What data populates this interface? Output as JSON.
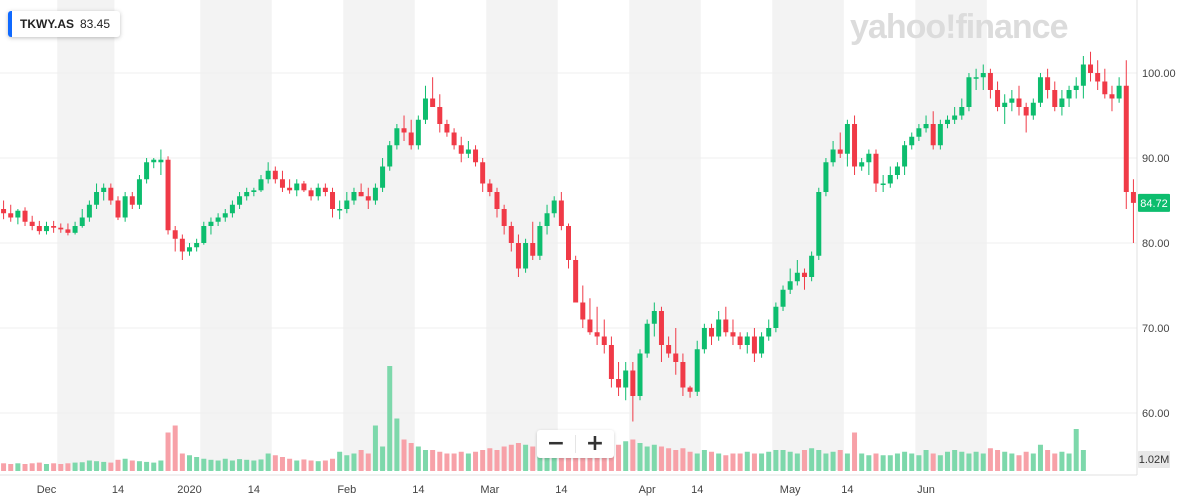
{
  "ticker": {
    "symbol": "TKWY.AS",
    "price": "83.45",
    "accent": "#0f69ff"
  },
  "logo": "yahoo!finance",
  "zoom": {
    "out_label": "−",
    "in_label": "+"
  },
  "colors": {
    "up": "#0dbd6e",
    "down": "#f03a47",
    "grid": "#efefef",
    "band": "#f3f3f3",
    "volume_up": "#7dd8ab",
    "volume_down": "#f7a1a8"
  },
  "chart_data": {
    "type": "candlestick",
    "ylim": [
      57,
      106
    ],
    "y_ticks": [
      "60.00",
      "70.00",
      "80.00",
      "90.00",
      "100.00"
    ],
    "x_ticks": [
      {
        "label": "Dec",
        "i": 6
      },
      {
        "label": "14",
        "i": 16
      },
      {
        "label": "2020",
        "i": 26
      },
      {
        "label": "14",
        "i": 35
      },
      {
        "label": "Feb",
        "i": 48
      },
      {
        "label": "14",
        "i": 58
      },
      {
        "label": "Mar",
        "i": 68
      },
      {
        "label": "14",
        "i": 78
      },
      {
        "label": "Apr",
        "i": 90
      },
      {
        "label": "14",
        "i": 97
      },
      {
        "label": "May",
        "i": 110
      },
      {
        "label": "14",
        "i": 118
      },
      {
        "label": "Jun",
        "i": 129
      }
    ],
    "bands": [
      [
        8,
        16
      ],
      [
        28,
        38
      ],
      [
        48,
        58
      ],
      [
        68,
        78
      ],
      [
        88,
        98
      ],
      [
        108,
        118
      ],
      [
        128,
        138
      ]
    ],
    "last_price": "84.72",
    "volume_label": "1.02M",
    "ohlc": [
      [
        84,
        85,
        82.8,
        83.5
      ],
      [
        83.5,
        84.5,
        82.5,
        83
      ],
      [
        83,
        84,
        82.2,
        83.8
      ],
      [
        83.8,
        84.2,
        82,
        82.5
      ],
      [
        82.5,
        83.2,
        81.5,
        82
      ],
      [
        82,
        82.6,
        81,
        81.4
      ],
      [
        81.4,
        82.5,
        81,
        82
      ],
      [
        82,
        82.6,
        81.2,
        81.8
      ],
      [
        81.8,
        82.3,
        81.2,
        81.6
      ],
      [
        81.6,
        82.3,
        80.9,
        81.2
      ],
      [
        81.2,
        82.5,
        81,
        82
      ],
      [
        82,
        84,
        81.8,
        83
      ],
      [
        83,
        85,
        82.5,
        84.5
      ],
      [
        84.5,
        87,
        84,
        86
      ],
      [
        86,
        87,
        85,
        86.5
      ],
      [
        86.5,
        87,
        84.5,
        85
      ],
      [
        85,
        85.5,
        82.7,
        83
      ],
      [
        83,
        86,
        82.5,
        85.5
      ],
      [
        85.5,
        86,
        84,
        84.5
      ],
      [
        84.5,
        88,
        84,
        87.5
      ],
      [
        87.5,
        90,
        87,
        89.5
      ],
      [
        89.5,
        90,
        88.8,
        89.8
      ],
      [
        89.5,
        91,
        88,
        89.8
      ],
      [
        89.8,
        90.2,
        81,
        81.5
      ],
      [
        81.5,
        82,
        79,
        80.5
      ],
      [
        80.5,
        81,
        78,
        79
      ],
      [
        79,
        80,
        78.5,
        79.5
      ],
      [
        79.5,
        80.5,
        79,
        80
      ],
      [
        80,
        82.5,
        79.8,
        82
      ],
      [
        82,
        83,
        81,
        82.5
      ],
      [
        82.5,
        83.5,
        82,
        83
      ],
      [
        83,
        84,
        82.5,
        83.5
      ],
      [
        83.5,
        85,
        83,
        84.5
      ],
      [
        84.5,
        86,
        84,
        85.5
      ],
      [
        85.5,
        86.5,
        85,
        86
      ],
      [
        86,
        86.5,
        85.5,
        86.2
      ],
      [
        86.2,
        88,
        86,
        87.5
      ],
      [
        87.5,
        89.5,
        87,
        88.5
      ],
      [
        88.5,
        89,
        87,
        87.5
      ],
      [
        87.5,
        88.5,
        86,
        86.5
      ],
      [
        86.5,
        87.5,
        85.8,
        86.2
      ],
      [
        86.2,
        87.5,
        85.5,
        87
      ],
      [
        87,
        87.3,
        86,
        86.2
      ],
      [
        86.2,
        86.5,
        85,
        85.5
      ],
      [
        85.5,
        87,
        85,
        86.5
      ],
      [
        86.5,
        87,
        85.5,
        86
      ],
      [
        86,
        86.5,
        83,
        84
      ],
      [
        84,
        85,
        82.8,
        84
      ],
      [
        84,
        86,
        83.5,
        85
      ],
      [
        85,
        86.5,
        84.5,
        86
      ],
      [
        86,
        87,
        85.5,
        85.5
      ],
      [
        85.5,
        86.5,
        84,
        85
      ],
      [
        85,
        87,
        84.5,
        86.5
      ],
      [
        86.5,
        90,
        86,
        89
      ],
      [
        89,
        92,
        88.5,
        91.5
      ],
      [
        91.5,
        94,
        91,
        93.5
      ],
      [
        93.5,
        95,
        92,
        93
      ],
      [
        93,
        94.5,
        91,
        91.5
      ],
      [
        91.5,
        95,
        91,
        94.5
      ],
      [
        94.5,
        98.5,
        94,
        97
      ],
      [
        97,
        99.5,
        96,
        96
      ],
      [
        96,
        97.5,
        93,
        94
      ],
      [
        94,
        94.5,
        92.5,
        93
      ],
      [
        93,
        93.5,
        91,
        91.5
      ],
      [
        91.5,
        92.5,
        89.5,
        90.5
      ],
      [
        90.5,
        92,
        90,
        91
      ],
      [
        91,
        91.5,
        89,
        89.5
      ],
      [
        89.5,
        90,
        86,
        87
      ],
      [
        87,
        87.5,
        85.5,
        86
      ],
      [
        86,
        86.5,
        83,
        84
      ],
      [
        84,
        84.5,
        81,
        82
      ],
      [
        82,
        82.5,
        79,
        80
      ],
      [
        80,
        81,
        76,
        77
      ],
      [
        77,
        80.5,
        76.5,
        80
      ],
      [
        80,
        82.5,
        78,
        78.5
      ],
      [
        78.5,
        82.5,
        78,
        82
      ],
      [
        82,
        84.5,
        81,
        83.5
      ],
      [
        83.5,
        85.5,
        83,
        85
      ],
      [
        85,
        86,
        81.5,
        82
      ],
      [
        82,
        82.3,
        77,
        78
      ],
      [
        78,
        78.5,
        73,
        73
      ],
      [
        73,
        75,
        70,
        71
      ],
      [
        71,
        73.5,
        69.2,
        69.5
      ],
      [
        69.5,
        72.5,
        68,
        69
      ],
      [
        69,
        71,
        67,
        68
      ],
      [
        68,
        69,
        63,
        64
      ],
      [
        64,
        66,
        62,
        63
      ],
      [
        63,
        66,
        61.5,
        65
      ],
      [
        65,
        66,
        59,
        62
      ],
      [
        62,
        67.5,
        61.5,
        67
      ],
      [
        67,
        71,
        66.5,
        70.5
      ],
      [
        70.5,
        73,
        69,
        72
      ],
      [
        72,
        72.5,
        66,
        68
      ],
      [
        68,
        69,
        66.5,
        67
      ],
      [
        67,
        70,
        64.5,
        66
      ],
      [
        66,
        67,
        62,
        63
      ],
      [
        63,
        63.2,
        61.8,
        62.5
      ],
      [
        62.5,
        68.5,
        62,
        67.5
      ],
      [
        67.5,
        70.5,
        67,
        70
      ],
      [
        70,
        70.5,
        68,
        69
      ],
      [
        69,
        72,
        68.5,
        71
      ],
      [
        71,
        72.5,
        69,
        69.5
      ],
      [
        69.5,
        71,
        68,
        69
      ],
      [
        69,
        69.5,
        67.5,
        68
      ],
      [
        68,
        69.5,
        67,
        69
      ],
      [
        69,
        70,
        66,
        67
      ],
      [
        67,
        69.5,
        66.5,
        69
      ],
      [
        69,
        71,
        68.5,
        70
      ],
      [
        70,
        73,
        69.5,
        72.5
      ],
      [
        72.5,
        75,
        72,
        74.5
      ],
      [
        74.5,
        77,
        74,
        75.5
      ],
      [
        75.5,
        78,
        75,
        76.5
      ],
      [
        76.5,
        77,
        74.5,
        76
      ],
      [
        76,
        79,
        75.5,
        78.5
      ],
      [
        78.5,
        86.5,
        78,
        86
      ],
      [
        86,
        90,
        85.5,
        89.5
      ],
      [
        89.5,
        92,
        89,
        91
      ],
      [
        91,
        93,
        90,
        90.5
      ],
      [
        90.5,
        94.5,
        89,
        94
      ],
      [
        94,
        95,
        88,
        89
      ],
      [
        89,
        90,
        88.5,
        89.5
      ],
      [
        89.5,
        91,
        88,
        90.5
      ],
      [
        90.5,
        91,
        86,
        87
      ],
      [
        87,
        88,
        86,
        87
      ],
      [
        87,
        89,
        86.5,
        88
      ],
      [
        88,
        89.5,
        87.5,
        89
      ],
      [
        89,
        92,
        88,
        91.5
      ],
      [
        91.5,
        93,
        91,
        92.5
      ],
      [
        92.5,
        94,
        92,
        93.5
      ],
      [
        93.5,
        95,
        93,
        94
      ],
      [
        94,
        95.5,
        91,
        91.5
      ],
      [
        91.5,
        94.5,
        91,
        94
      ],
      [
        94,
        95,
        93.5,
        94.5
      ],
      [
        94.5,
        96,
        94,
        95
      ],
      [
        95,
        97,
        94.5,
        96
      ],
      [
        96,
        100,
        95.5,
        99.5
      ],
      [
        99.5,
        100.5,
        98,
        99.5
      ],
      [
        99.5,
        101,
        98,
        100
      ],
      [
        100,
        100.5,
        97,
        98
      ],
      [
        98,
        99,
        95.5,
        96
      ],
      [
        96,
        97.5,
        94,
        96.5
      ],
      [
        96.5,
        98,
        95.5,
        97
      ],
      [
        97,
        98.5,
        95,
        96
      ],
      [
        96,
        96.5,
        93,
        95
      ],
      [
        95,
        97,
        94.5,
        96.5
      ],
      [
        96.5,
        100,
        96,
        99.5
      ],
      [
        99.5,
        100.5,
        97,
        98
      ],
      [
        98,
        99,
        95.5,
        96
      ],
      [
        96,
        98,
        95,
        97
      ],
      [
        97,
        98.5,
        96,
        98
      ],
      [
        98,
        99.5,
        97,
        98.5
      ],
      [
        98.5,
        102,
        97,
        101
      ],
      [
        101,
        102.5,
        99,
        100
      ],
      [
        100,
        101.5,
        98,
        99
      ],
      [
        99,
        100.5,
        97,
        97.5
      ],
      [
        97.5,
        98.5,
        95.5,
        97
      ],
      [
        97,
        99.5,
        96.5,
        98.5
      ],
      [
        98.5,
        101.5,
        84,
        86
      ],
      [
        86,
        87.5,
        80,
        84.72
      ]
    ],
    "volume": [
      0.22,
      0.2,
      0.22,
      0.2,
      0.22,
      0.24,
      0.2,
      0.22,
      0.2,
      0.22,
      0.24,
      0.25,
      0.3,
      0.28,
      0.26,
      0.24,
      0.32,
      0.35,
      0.3,
      0.28,
      0.26,
      0.24,
      0.3,
      1.1,
      1.3,
      0.5,
      0.45,
      0.4,
      0.35,
      0.32,
      0.3,
      0.35,
      0.3,
      0.34,
      0.32,
      0.3,
      0.33,
      0.5,
      0.45,
      0.4,
      0.35,
      0.3,
      0.33,
      0.3,
      0.28,
      0.3,
      0.35,
      0.55,
      0.45,
      0.5,
      0.6,
      0.5,
      1.3,
      0.7,
      3.0,
      1.5,
      0.9,
      0.8,
      0.7,
      0.6,
      0.6,
      0.55,
      0.5,
      0.5,
      0.55,
      0.5,
      0.55,
      0.6,
      0.65,
      0.6,
      0.7,
      0.75,
      0.8,
      0.75,
      0.7,
      0.8,
      0.75,
      0.7,
      0.6,
      0.65,
      0.7,
      0.8,
      0.9,
      0.7,
      0.65,
      0.8,
      0.75,
      0.85,
      0.9,
      0.8,
      0.7,
      0.75,
      0.7,
      0.65,
      0.6,
      0.65,
      0.55,
      0.5,
      0.6,
      0.55,
      0.5,
      0.45,
      0.5,
      0.5,
      0.55,
      0.5,
      0.5,
      0.55,
      0.6,
      0.6,
      0.55,
      0.5,
      0.6,
      0.65,
      0.6,
      0.5,
      0.55,
      0.6,
      0.5,
      1.1,
      0.5,
      0.45,
      0.5,
      0.45,
      0.45,
      0.5,
      0.55,
      0.5,
      0.45,
      0.6,
      0.5,
      0.45,
      0.55,
      0.6,
      0.55,
      0.5,
      0.55,
      0.5,
      0.65,
      0.6,
      0.55,
      0.5,
      0.45,
      0.55,
      0.5,
      0.75,
      0.6,
      0.5,
      0.55,
      0.5,
      1.2,
      0.6
    ]
  }
}
